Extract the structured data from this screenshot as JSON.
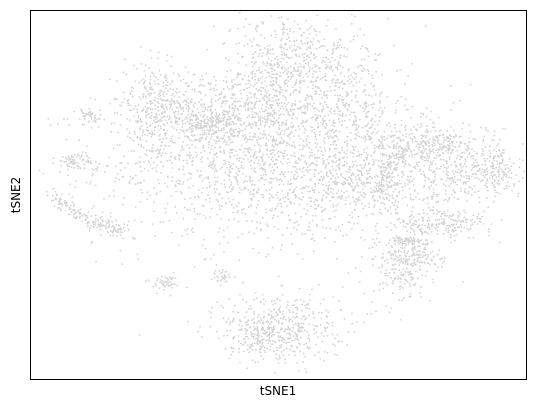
{
  "chart_data": {
    "type": "scatter",
    "xlabel": "tSNE1",
    "ylabel": "tSNE2",
    "xticks": [],
    "yticks": [],
    "grid": false,
    "legend": "none",
    "point_color": "#d3d3d3",
    "xlim": [
      0,
      100
    ],
    "ylim": [
      0,
      100
    ],
    "clusters": [
      {
        "cx": 50,
        "cy": 58,
        "sx": 18,
        "sy": 11,
        "n": 1600
      },
      {
        "cx": 35,
        "cy": 72,
        "sx": 8,
        "sy": 6,
        "n": 450
      },
      {
        "cx": 48,
        "cy": 78,
        "sx": 5,
        "sy": 11,
        "n": 520
      },
      {
        "cx": 56,
        "cy": 87,
        "sx": 5,
        "sy": 5,
        "n": 200
      },
      {
        "cx": 63,
        "cy": 75,
        "sx": 5,
        "sy": 8,
        "n": 300
      },
      {
        "cx": 25,
        "cy": 75,
        "sx": 3,
        "sy": 5,
        "n": 200
      },
      {
        "cx": 36,
        "cy": 69,
        "sx": 3,
        "sy": 2,
        "n": 160
      },
      {
        "cx": 81,
        "cy": 63,
        "sx": 7,
        "sy": 3,
        "n": 400
      },
      {
        "cx": 88,
        "cy": 54,
        "sx": 6,
        "sy": 3,
        "n": 220
      },
      {
        "cx": 83,
        "cy": 42,
        "sx": 5,
        "sy": 2,
        "n": 200
      },
      {
        "cx": 94,
        "cy": 57,
        "sx": 2,
        "sy": 2,
        "n": 80
      },
      {
        "cx": 69,
        "cy": 53,
        "sx": 7,
        "sy": 4,
        "n": 250
      },
      {
        "cx": 75,
        "cy": 30,
        "sx": 3,
        "sy": 5,
        "n": 180
      },
      {
        "cx": 78,
        "cy": 33,
        "sx": 3,
        "sy": 2,
        "n": 90
      },
      {
        "cx": 51,
        "cy": 14,
        "sx": 6,
        "sy": 5,
        "n": 420
      },
      {
        "cx": 46,
        "cy": 12,
        "sx": 3,
        "sy": 3,
        "n": 120
      },
      {
        "cx": 9,
        "cy": 59,
        "sx": 2,
        "sy": 1.2,
        "n": 70
      },
      {
        "cx": 12,
        "cy": 71,
        "sx": 1.2,
        "sy": 1.5,
        "n": 45
      },
      {
        "cx": 27,
        "cy": 26,
        "sx": 1.3,
        "sy": 1,
        "n": 45
      },
      {
        "cx": 39,
        "cy": 28,
        "sx": 1.2,
        "sy": 1,
        "n": 30
      }
    ],
    "curves": [
      {
        "x0": 4.5,
        "y0": 50,
        "x1": 20,
        "y1": 40,
        "bend": -2,
        "spread": 1.1,
        "n": 180
      },
      {
        "x0": 70,
        "y0": 48,
        "x1": 75,
        "y1": 60,
        "bend": 3,
        "spread": 1.2,
        "n": 90
      },
      {
        "x0": 73,
        "y0": 38,
        "x1": 80,
        "y1": 37,
        "bend": 0,
        "spread": 0.6,
        "n": 60
      }
    ]
  }
}
